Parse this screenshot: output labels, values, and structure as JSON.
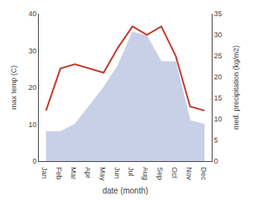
{
  "chart_data": {
    "type": "line",
    "xlabel": "date (month)",
    "ylabel": "max temp (C)",
    "y2label": "med. precipitation (kg/m2)",
    "categories": [
      "Jan",
      "Feb",
      "Mar",
      "Apr",
      "May",
      "Jun",
      "Jul",
      "Aug",
      "Sep",
      "Oct",
      "Nov",
      "Dec"
    ],
    "series": [
      {
        "type": "area",
        "color": "#c8d0e8",
        "values": [
          8,
          8,
          10,
          15,
          20,
          26,
          35,
          34,
          27,
          27,
          11,
          10
        ]
      },
      {
        "type": "line",
        "color": "#c0392b",
        "axis": "y2",
        "values": [
          12,
          22,
          23,
          22,
          21,
          27,
          32,
          30,
          32,
          25,
          13,
          12
        ]
      }
    ],
    "ylim": [
      0,
      40
    ],
    "yticks": [
      0,
      10,
      20,
      30,
      40
    ],
    "y2lim": [
      0,
      35
    ],
    "y2ticks": [
      0,
      5,
      10,
      15,
      20,
      25,
      30,
      35
    ],
    "grid": false
  }
}
